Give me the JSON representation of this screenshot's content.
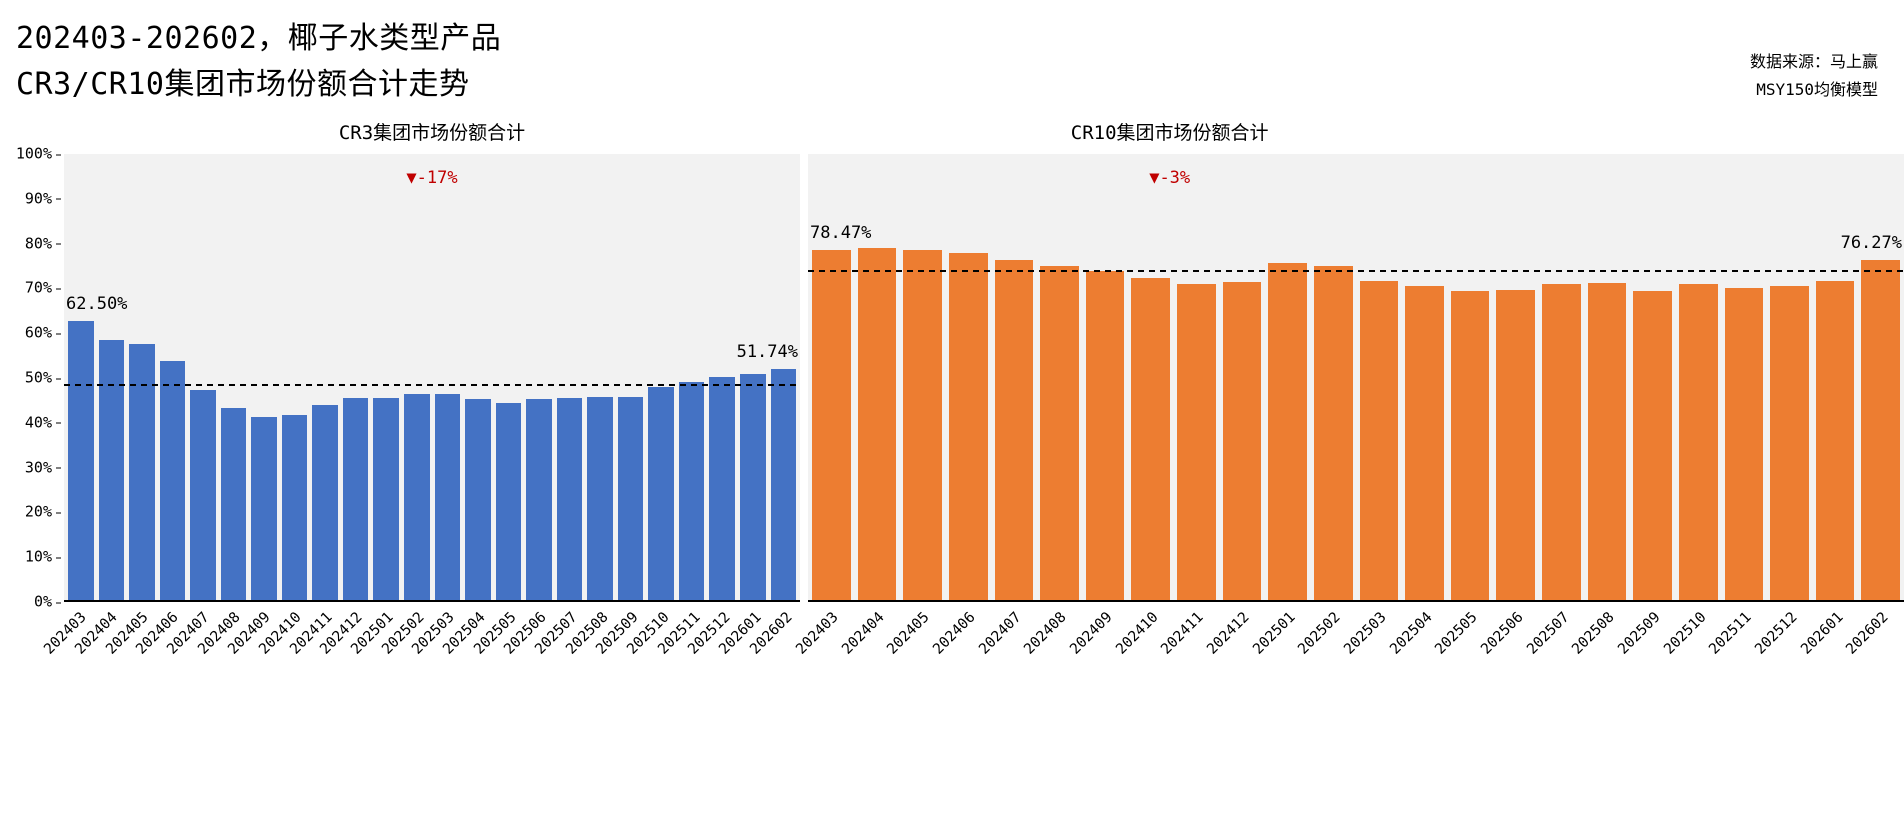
{
  "header": {
    "title_line1": "202403-202602，椰子水类型产品",
    "title_line2": "CR3/CR10集团市场份额合计走势",
    "source_line1": "数据来源：马上赢",
    "source_line2": "MSY150均衡模型"
  },
  "y_axis": {
    "ticks": [
      "0%",
      "10%",
      "20%",
      "30%",
      "40%",
      "50%",
      "60%",
      "70%",
      "80%",
      "90%",
      "100%"
    ]
  },
  "chart_data": [
    {
      "type": "bar",
      "title": "CR3集团市场份额合计",
      "bar_color": "#4472C4",
      "annotation_color": "#C00000",
      "ylim": [
        0,
        100
      ],
      "grid": false,
      "categories": [
        "202403",
        "202404",
        "202405",
        "202406",
        "202407",
        "202408",
        "202409",
        "202410",
        "202411",
        "202412",
        "202501",
        "202502",
        "202503",
        "202504",
        "202505",
        "202506",
        "202507",
        "202508",
        "202509",
        "202510",
        "202511",
        "202512",
        "202601",
        "202602"
      ],
      "values": [
        62.5,
        58.2,
        57.3,
        53.5,
        47.2,
        43.0,
        41.0,
        41.5,
        43.7,
        45.3,
        45.4,
        46.1,
        46.1,
        45.0,
        44.1,
        45.0,
        45.4,
        45.6,
        45.6,
        47.7,
        48.8,
        49.9,
        50.6,
        51.74
      ],
      "first_label": "62.50%",
      "last_label": "51.74%",
      "delta_icon": "▼",
      "delta_label": "-17%",
      "reference_line_pct": 48.0
    },
    {
      "type": "bar",
      "title": "CR10集团市场份额合计",
      "bar_color": "#ED7D31",
      "annotation_color": "#C00000",
      "ylim": [
        0,
        100
      ],
      "grid": false,
      "categories": [
        "202403",
        "202404",
        "202405",
        "202406",
        "202407",
        "202408",
        "202409",
        "202410",
        "202411",
        "202412",
        "202501",
        "202502",
        "202503",
        "202504",
        "202505",
        "202506",
        "202507",
        "202508",
        "202509",
        "202510",
        "202511",
        "202512",
        "202601",
        "202602"
      ],
      "values": [
        78.47,
        79.0,
        78.5,
        77.9,
        76.3,
        74.9,
        73.8,
        72.3,
        70.8,
        71.4,
        75.6,
        74.9,
        71.6,
        70.5,
        69.3,
        69.6,
        70.9,
        71.1,
        69.3,
        70.8,
        69.9,
        70.5,
        71.6,
        76.27
      ],
      "first_label": "78.47%",
      "last_label": "76.27%",
      "delta_icon": "▼",
      "delta_label": "-3%",
      "reference_line_pct": 73.5
    }
  ]
}
